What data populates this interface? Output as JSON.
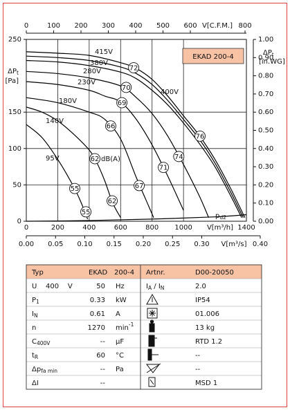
{
  "chart_data": {
    "type": "line",
    "title": "EKAD 200-4",
    "y_label": "ΔP",
    "y_label_sub": "t",
    "y_unit": "[Pa]",
    "y2_label": "ΔP",
    "y2_label_sub": "t",
    "y2_unit": "[in.WG]",
    "x_label": "V[m³/h]",
    "x2_label": "V[C.F.M.]",
    "x3_label": "V[m³/s]",
    "xlim": [
      0,
      1400
    ],
    "xticks": [
      0,
      200,
      400,
      600,
      800,
      1000,
      1400
    ],
    "ylim": [
      0,
      250
    ],
    "yticks": [
      0,
      50,
      100,
      150,
      250
    ],
    "x2lim": [
      0,
      805
    ],
    "x2ticks": [
      0,
      100,
      200,
      300,
      400,
      500,
      600,
      800
    ],
    "x3lim": [
      0,
      0.4
    ],
    "x3ticks": [
      {
        "value": 0,
        "label": "0.00"
      },
      {
        "value": 0.05,
        "label": "0.05"
      },
      {
        "value": 0.1,
        "label": "0.10"
      },
      {
        "value": 0.15,
        "label": "0.15"
      },
      {
        "value": 0.2,
        "label": "0.20"
      },
      {
        "value": 0.25,
        "label": "0.25"
      },
      {
        "value": 0.3,
        "label": "0.30"
      },
      {
        "value": 0.4,
        "label": "0.40"
      }
    ],
    "y2lim": [
      0,
      1
    ],
    "y2ticks": [
      {
        "value": 0,
        "label": "0.00"
      },
      {
        "value": 0.1,
        "label": "0.10"
      },
      {
        "value": 0.2,
        "label": "0.20"
      },
      {
        "value": 0.3,
        "label": "0.30"
      },
      {
        "value": 0.4,
        "label": "0.40"
      },
      {
        "value": 0.5,
        "label": "0.50"
      },
      {
        "value": 0.6,
        "label": "0.60"
      },
      {
        "value": 0.7,
        "label": "0.70"
      },
      {
        "value": 0.8,
        "label": "0.80"
      },
      {
        "value": 0.9,
        "label": "0.90"
      },
      {
        "value": 1,
        "label": "1.00"
      }
    ],
    "grid": true,
    "series": [
      {
        "name": "415V",
        "color": "#000000",
        "x": [
          0,
          200,
          400,
          600,
          700,
          800,
          900,
          1000,
          1100,
          1200,
          1300,
          1390
        ],
        "values": [
          233,
          231,
          228,
          218,
          210,
          195,
          172,
          145,
          118,
          85,
          45,
          5
        ]
      },
      {
        "name": "400V",
        "color": "#000000",
        "x": [
          0,
          200,
          400,
          600,
          700,
          800,
          900,
          1000,
          1100,
          1200,
          1300,
          1380
        ],
        "values": [
          227,
          225,
          221,
          212,
          203,
          188,
          166,
          140,
          113,
          80,
          40,
          5
        ]
      },
      {
        "name": "380V",
        "color": "#000000",
        "x": [
          0,
          200,
          400,
          600,
          700,
          800,
          900,
          1000,
          1100,
          1200,
          1300,
          1370
        ],
        "values": [
          221,
          219,
          214,
          205,
          196,
          180,
          160,
          135,
          107,
          75,
          35,
          5
        ]
      },
      {
        "name": "280V",
        "color": "#000000",
        "x": [
          0,
          200,
          400,
          600,
          700,
          800,
          900,
          1000,
          1100,
          1160
        ],
        "values": [
          206,
          203,
          197,
          186,
          170,
          148,
          117,
          78,
          35,
          5
        ]
      },
      {
        "name": "230V",
        "color": "#000000",
        "x": [
          0,
          200,
          400,
          500,
          600,
          700,
          800,
          900,
          1000
        ],
        "values": [
          192,
          188,
          180,
          172,
          164,
          140,
          105,
          62,
          15
        ]
      },
      {
        "name": "180V",
        "color": "#000000",
        "x": [
          0,
          200,
          400,
          500,
          600,
          700,
          780,
          810
        ],
        "values": [
          170,
          163,
          150,
          140,
          113,
          60,
          20,
          5
        ]
      },
      {
        "name": "140V",
        "color": "#000000",
        "x": [
          0,
          100,
          200,
          300,
          400,
          450,
          500,
          550,
          600
        ],
        "values": [
          157,
          150,
          138,
          120,
          98,
          80,
          55,
          25,
          5
        ]
      },
      {
        "name": "95V",
        "color": "#000000",
        "x": [
          0,
          100,
          200,
          300,
          350,
          390
        ],
        "values": [
          133,
          115,
          85,
          48,
          25,
          3
        ]
      }
    ],
    "system_curve": {
      "name": "p",
      "name_sub": "d2",
      "color": "#000000",
      "x": [
        0,
        400,
        800,
        1200,
        1400
      ],
      "values": [
        0,
        1,
        3,
        6,
        9
      ]
    },
    "annotations": [
      {
        "label": 72,
        "x": 683,
        "y": 211
      },
      {
        "label": 76,
        "x": 1105,
        "y": 117
      },
      {
        "label": 70,
        "x": 635,
        "y": 184
      },
      {
        "label": 74,
        "x": 970,
        "y": 89
      },
      {
        "label": 69,
        "x": 608,
        "y": 163
      },
      {
        "label": 71,
        "x": 872,
        "y": 74
      },
      {
        "label": 66,
        "x": 537,
        "y": 131
      },
      {
        "label": 67,
        "x": 718,
        "y": 49
      },
      {
        "label": 62,
        "x": 436,
        "y": 86
      },
      {
        "label": 62,
        "x": 546,
        "y": 28
      },
      {
        "label": 55,
        "x": 308,
        "y": 45
      },
      {
        "label": 55,
        "x": 379,
        "y": 13
      }
    ],
    "annotation_unit": "dB(A)"
  },
  "table": {
    "header": [
      "Typ",
      "EKAD",
      "200-4",
      "Artnr.",
      "D00-20050"
    ],
    "rows": [
      {
        "param": [
          {
            "text": "U    400    V"
          }
        ],
        "value": "50",
        "unit": [
          {
            "text": "Hz"
          }
        ],
        "symbol": [
          {
            "text": "I"
          },
          {
            "sub": "A"
          },
          {
            "text": " / I"
          },
          {
            "sub": "N"
          }
        ],
        "spec": "2.0"
      },
      {
        "param": [
          {
            "text": "P"
          },
          {
            "sub": "1"
          }
        ],
        "value": "0.33",
        "unit": [
          {
            "text": "kW"
          }
        ],
        "spec": "IP54"
      },
      {
        "param": [
          {
            "text": "I"
          },
          {
            "sub": "N"
          }
        ],
        "value": "0.61",
        "unit": [
          {
            "text": "A"
          }
        ],
        "spec": "01.006"
      },
      {
        "param": [
          {
            "text": "n"
          }
        ],
        "value": "1270",
        "unit": [
          {
            "text": "min"
          },
          {
            "sup": "-1"
          }
        ],
        "spec": "13 kg"
      },
      {
        "param": [
          {
            "text": "C"
          },
          {
            "sub": "400V"
          }
        ],
        "value": "--",
        "unit": [
          {
            "text": "µF"
          }
        ],
        "spec": "RTD 1.2"
      },
      {
        "param": [
          {
            "text": "t"
          },
          {
            "sub": "R"
          }
        ],
        "value": "60",
        "unit": [
          {
            "text": "°C"
          }
        ],
        "spec": "--"
      },
      {
        "param": [
          {
            "text": "Δp"
          },
          {
            "sub": "fa min"
          }
        ],
        "value": "--",
        "unit": [
          {
            "text": "Pa"
          }
        ],
        "spec": "--"
      },
      {
        "param": [
          {
            "text": "ΔI"
          }
        ],
        "value": "--",
        "spec": "MSD 1"
      }
    ]
  }
}
